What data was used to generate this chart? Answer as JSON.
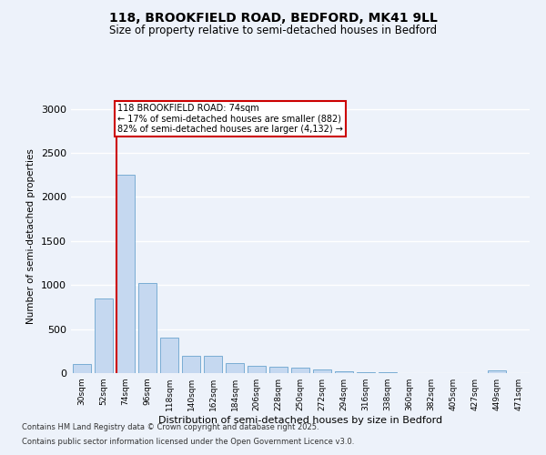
{
  "title1": "118, BROOKFIELD ROAD, BEDFORD, MK41 9LL",
  "title2": "Size of property relative to semi-detached houses in Bedford",
  "xlabel": "Distribution of semi-detached houses by size in Bedford",
  "ylabel": "Number of semi-detached properties",
  "property_label": "118 BROOKFIELD ROAD: 74sqm",
  "pct_smaller": 17,
  "pct_larger": 82,
  "count_smaller": 882,
  "count_larger": 4132,
  "categories": [
    "30sqm",
    "52sqm",
    "74sqm",
    "96sqm",
    "118sqm",
    "140sqm",
    "162sqm",
    "184sqm",
    "206sqm",
    "228sqm",
    "250sqm",
    "272sqm",
    "294sqm",
    "316sqm",
    "338sqm",
    "360sqm",
    "382sqm",
    "405sqm",
    "427sqm",
    "449sqm",
    "471sqm"
  ],
  "values": [
    100,
    850,
    2250,
    1020,
    400,
    200,
    200,
    110,
    85,
    75,
    60,
    40,
    25,
    15,
    10,
    5,
    5,
    3,
    2,
    30,
    2
  ],
  "bar_color": "#c5d8f0",
  "bar_edge_color": "#7aadd4",
  "vline_color": "#cc0000",
  "vline_index": 2,
  "annotation_box_color": "#cc0000",
  "background_color": "#edf2fa",
  "grid_color": "#ffffff",
  "ylim": [
    0,
    3100
  ],
  "yticks": [
    0,
    500,
    1000,
    1500,
    2000,
    2500,
    3000
  ],
  "footer1": "Contains HM Land Registry data © Crown copyright and database right 2025.",
  "footer2": "Contains public sector information licensed under the Open Government Licence v3.0."
}
